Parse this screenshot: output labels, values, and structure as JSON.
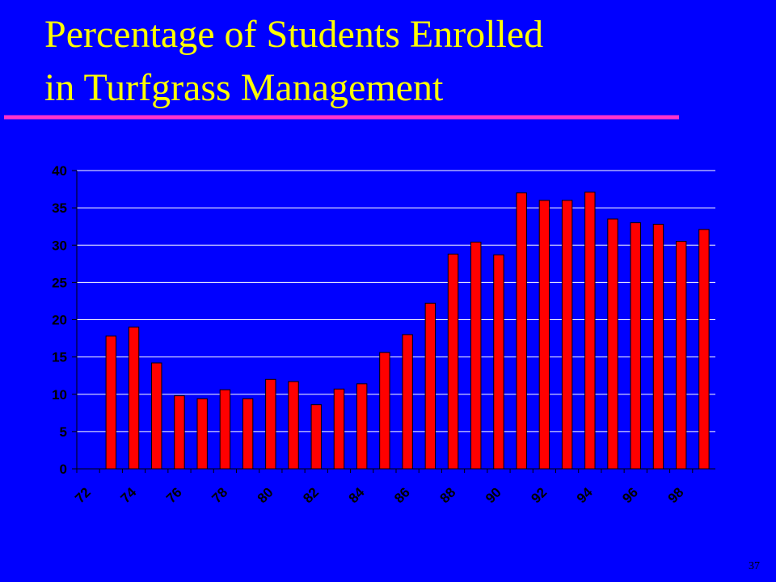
{
  "page_number": "37",
  "chart_data": {
    "type": "bar",
    "title": [
      "Percentage of Students Enrolled",
      "in Turfgrass Management"
    ],
    "categories": [
      "72",
      null,
      "74",
      null,
      "76",
      null,
      "78",
      null,
      "80",
      null,
      "82",
      null,
      "84",
      null,
      "86",
      null,
      "88",
      null,
      "90",
      null,
      "92",
      null,
      "94",
      null,
      "96",
      null,
      "98",
      null
    ],
    "values": [
      null,
      17.8,
      19,
      14.2,
      9.8,
      9.4,
      10.6,
      9.4,
      12,
      11.7,
      8.6,
      10.7,
      11.4,
      15.6,
      18,
      22.2,
      28.8,
      30.4,
      28.7,
      37,
      36,
      36,
      37.1,
      33.5,
      33,
      32.8,
      30.5,
      32.1
    ],
    "color": "#ff0000",
    "ylim": [
      0,
      40
    ],
    "yticks": [
      0,
      5,
      10,
      15,
      20,
      25,
      30,
      35,
      40
    ],
    "grid": true
  }
}
